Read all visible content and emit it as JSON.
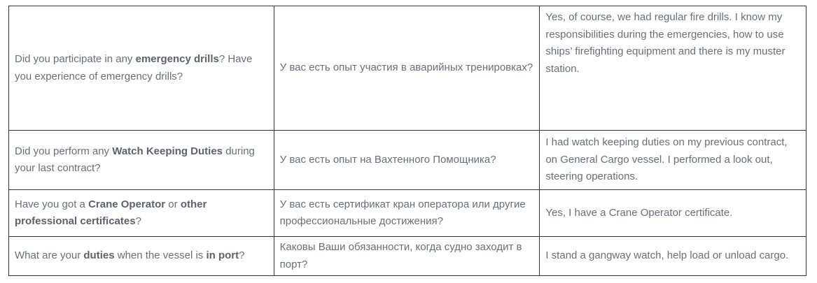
{
  "rows": [
    {
      "question": [
        {
          "text": "Did you participate in any ",
          "bold": false
        },
        {
          "text": "emergency drills",
          "bold": true
        },
        {
          "text": "? Have you experience of emergency drills?",
          "bold": false
        }
      ],
      "translation": "У вас есть опыт участия в аварийных тренировках?",
      "answer": "Yes, of course, we had regular fire drills. I know my responsibilities during the emergencies, how to use ships’ firefighting equipment and there is my muster station."
    },
    {
      "question": [
        {
          "text": "Did you perform any ",
          "bold": false
        },
        {
          "text": "Watch Keeping Duties",
          "bold": true
        },
        {
          "text": " during your last contract?",
          "bold": false
        }
      ],
      "translation": "У вас есть опыт на Вахтенного Помощника?",
      "answer": "I had watch keeping duties on my previous contract, on General Cargo vessel. I performed a look out, steering operations."
    },
    {
      "question": [
        {
          "text": "Have you got a ",
          "bold": false
        },
        {
          "text": "Crane Operator",
          "bold": true
        },
        {
          "text": " or ",
          "bold": false
        },
        {
          "text": "other professional certificates",
          "bold": true
        },
        {
          "text": "?",
          "bold": false
        }
      ],
      "translation": "У вас есть сертификат кран оператора или другие профессиональные достижения?",
      "answer": "Yes, I have a Crane Operator certificate."
    },
    {
      "question": [
        {
          "text": "What are your ",
          "bold": false
        },
        {
          "text": "duties",
          "bold": true
        },
        {
          "text": " when the vessel is ",
          "bold": false
        },
        {
          "text": "in port",
          "bold": true
        },
        {
          "text": "?",
          "bold": false
        }
      ],
      "translation": "Каковы Ваши обязанности, когда судно заходит в порт?",
      "answer": "I stand a gangway watch, help load or unload cargo."
    }
  ]
}
